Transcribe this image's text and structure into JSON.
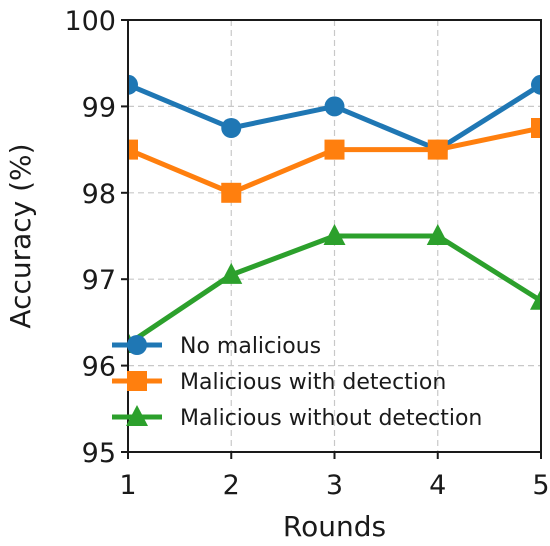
{
  "chart_data": {
    "type": "line",
    "title": "",
    "xlabel": "Rounds",
    "ylabel": "Accuracy (%)",
    "x": [
      1,
      2,
      3,
      4,
      5
    ],
    "xlim": [
      1,
      5
    ],
    "ylim": [
      95,
      100
    ],
    "xticks": [
      "1",
      "2",
      "3",
      "4",
      "5"
    ],
    "yticks": [
      "95",
      "96",
      "97",
      "98",
      "99",
      "100"
    ],
    "grid": true,
    "legend_position": "lower-left",
    "series": [
      {
        "name": "No malicious",
        "values": [
          99.25,
          98.75,
          99.0,
          98.5,
          99.25
        ],
        "color": "#1f77b4",
        "marker": "circle"
      },
      {
        "name": "Malicious with detection",
        "values": [
          98.5,
          98.0,
          98.5,
          98.5,
          98.75
        ],
        "color": "#ff7f0e",
        "marker": "square"
      },
      {
        "name": "Malicious without detection",
        "values": [
          96.25,
          97.05,
          97.5,
          97.5,
          96.75
        ],
        "color": "#2ca02c",
        "marker": "triangle"
      }
    ]
  }
}
